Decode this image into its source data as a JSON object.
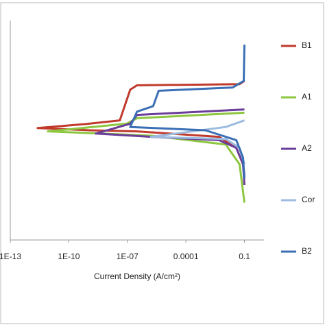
{
  "chart_data": {
    "type": "line",
    "x_label": "Current Density (A/cm²)",
    "x_scale": "log",
    "xlim": [
      1e-13,
      1
    ],
    "xticks": [
      {
        "value": 1e-13,
        "label": "1E-13"
      },
      {
        "value": 1e-10,
        "label": "1E-10"
      },
      {
        "value": 1e-07,
        "label": "1E-07"
      },
      0.0001,
      0.1
    ],
    "ylim": [
      -1.5,
      0.5
    ],
    "legend": "right",
    "series": [
      {
        "name": "B1",
        "color": "#c0392b",
        "x": [
          0.1,
          0.056,
          3.1e-07,
          1.4e-07,
          4.1e-08,
          1.1e-09,
          2.5e-12,
          1.1e-09,
          3.1e-07,
          0.005,
          0.038,
          0.085,
          0.1
        ],
        "values": [
          -0.05,
          -0.08,
          -0.09,
          -0.13,
          -0.41,
          -0.44,
          -0.48,
          -0.5,
          -0.51,
          -0.56,
          -0.66,
          -0.81,
          -0.91
        ]
      },
      {
        "name": "A1",
        "color": "#8dc63f",
        "x": [
          0.1,
          3.1e-07,
          9.2e-08,
          8.5e-12,
          4.6e-09,
          1.8e-06,
          0.011,
          0.056,
          0.1
        ],
        "values": [
          -0.34,
          -0.39,
          -0.44,
          -0.51,
          -0.53,
          -0.55,
          -0.63,
          -0.81,
          -1.16
        ]
      },
      {
        "name": "A2",
        "color": "#6a3d9a",
        "x": [
          0.1,
          3.1e-07,
          1.4e-07,
          2.4e-09,
          1.8e-06,
          0.005,
          0.038,
          0.085,
          0.1
        ],
        "values": [
          -0.31,
          -0.36,
          -0.44,
          -0.53,
          -0.56,
          -0.59,
          -0.66,
          -0.81,
          -1.0
        ]
      },
      {
        "name": "Cor",
        "color": "#9dbbe0",
        "x": [
          0.1,
          0.011,
          1.6e-06,
          0.011,
          0.056,
          0.1
        ],
        "values": [
          -0.41,
          -0.47,
          -0.56,
          -0.58,
          -0.66,
          -0.81
        ]
      },
      {
        "name": "B2",
        "color": "#3a6fb5",
        "x": [
          0.1,
          0.092,
          0.025,
          4e-06,
          2.1e-06,
          3.1e-07,
          1.4e-07,
          0.001,
          0.038,
          0.085,
          0.1
        ],
        "values": [
          0.28,
          -0.05,
          -0.11,
          -0.14,
          -0.28,
          -0.33,
          -0.47,
          -0.5,
          -0.59,
          -0.75,
          -0.94
        ]
      }
    ]
  }
}
